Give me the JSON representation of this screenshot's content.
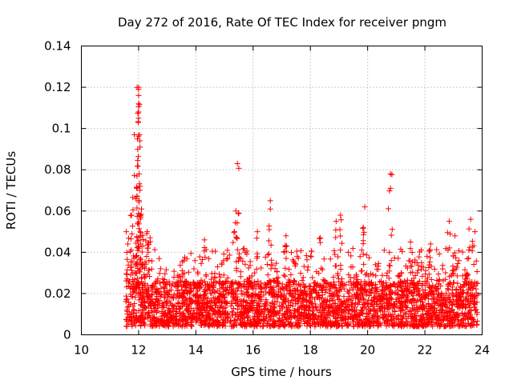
{
  "chart_data": {
    "type": "scatter",
    "title": "Day 272 of 2016, Rate Of TEC Index for receiver pngm",
    "xlabel": "GPS time / hours",
    "ylabel": "ROTI / TECUs",
    "xlim": [
      10,
      24
    ],
    "ylim": [
      0,
      0.14
    ],
    "xticks": [
      10,
      12,
      14,
      16,
      18,
      20,
      22,
      24
    ],
    "yticks": [
      0,
      0.02,
      0.04,
      0.06,
      0.08,
      0.1,
      0.12,
      0.14
    ],
    "xtick_labels": [
      "10",
      "12",
      "14",
      "16",
      "18",
      "20",
      "22",
      "24"
    ],
    "ytick_labels": [
      "0",
      "0.02",
      "0.04",
      "0.06",
      "0.08",
      "0.1",
      "0.12",
      "0.14"
    ],
    "grid": true,
    "marker": "+",
    "color": "#ff0000",
    "series": [
      {
        "name": "ROTI",
        "x_range": [
          11.55,
          23.85
        ],
        "baseline_range": [
          0.004,
          0.03
        ],
        "peaks": [
          {
            "x": 11.85,
            "y": 0.097
          },
          {
            "x": 11.9,
            "y": 0.066
          },
          {
            "x": 11.95,
            "y": 0.071
          },
          {
            "x": 12.0,
            "y": 0.12
          },
          {
            "x": 12.0,
            "y": 0.119
          },
          {
            "x": 12.0,
            "y": 0.116
          },
          {
            "x": 12.0,
            "y": 0.112
          },
          {
            "x": 12.0,
            "y": 0.108
          },
          {
            "x": 12.0,
            "y": 0.105
          },
          {
            "x": 12.05,
            "y": 0.091
          },
          {
            "x": 12.02,
            "y": 0.078
          },
          {
            "x": 12.05,
            "y": 0.072
          },
          {
            "x": 12.1,
            "y": 0.061
          },
          {
            "x": 11.75,
            "y": 0.058
          },
          {
            "x": 12.3,
            "y": 0.05
          },
          {
            "x": 12.4,
            "y": 0.047
          },
          {
            "x": 14.3,
            "y": 0.046
          },
          {
            "x": 15.45,
            "y": 0.083
          },
          {
            "x": 15.4,
            "y": 0.06
          },
          {
            "x": 15.5,
            "y": 0.059
          },
          {
            "x": 15.35,
            "y": 0.05
          },
          {
            "x": 16.6,
            "y": 0.065
          },
          {
            "x": 16.6,
            "y": 0.061
          },
          {
            "x": 16.15,
            "y": 0.05
          },
          {
            "x": 17.15,
            "y": 0.048
          },
          {
            "x": 18.35,
            "y": 0.047
          },
          {
            "x": 18.9,
            "y": 0.055
          },
          {
            "x": 19.05,
            "y": 0.058
          },
          {
            "x": 19.9,
            "y": 0.062
          },
          {
            "x": 19.85,
            "y": 0.052
          },
          {
            "x": 20.8,
            "y": 0.078
          },
          {
            "x": 20.8,
            "y": 0.071
          },
          {
            "x": 21.5,
            "y": 0.045
          },
          {
            "x": 22.2,
            "y": 0.044
          },
          {
            "x": 22.85,
            "y": 0.055
          },
          {
            "x": 23.05,
            "y": 0.048
          },
          {
            "x": 23.6,
            "y": 0.056
          },
          {
            "x": 23.75,
            "y": 0.05
          }
        ]
      }
    ]
  }
}
